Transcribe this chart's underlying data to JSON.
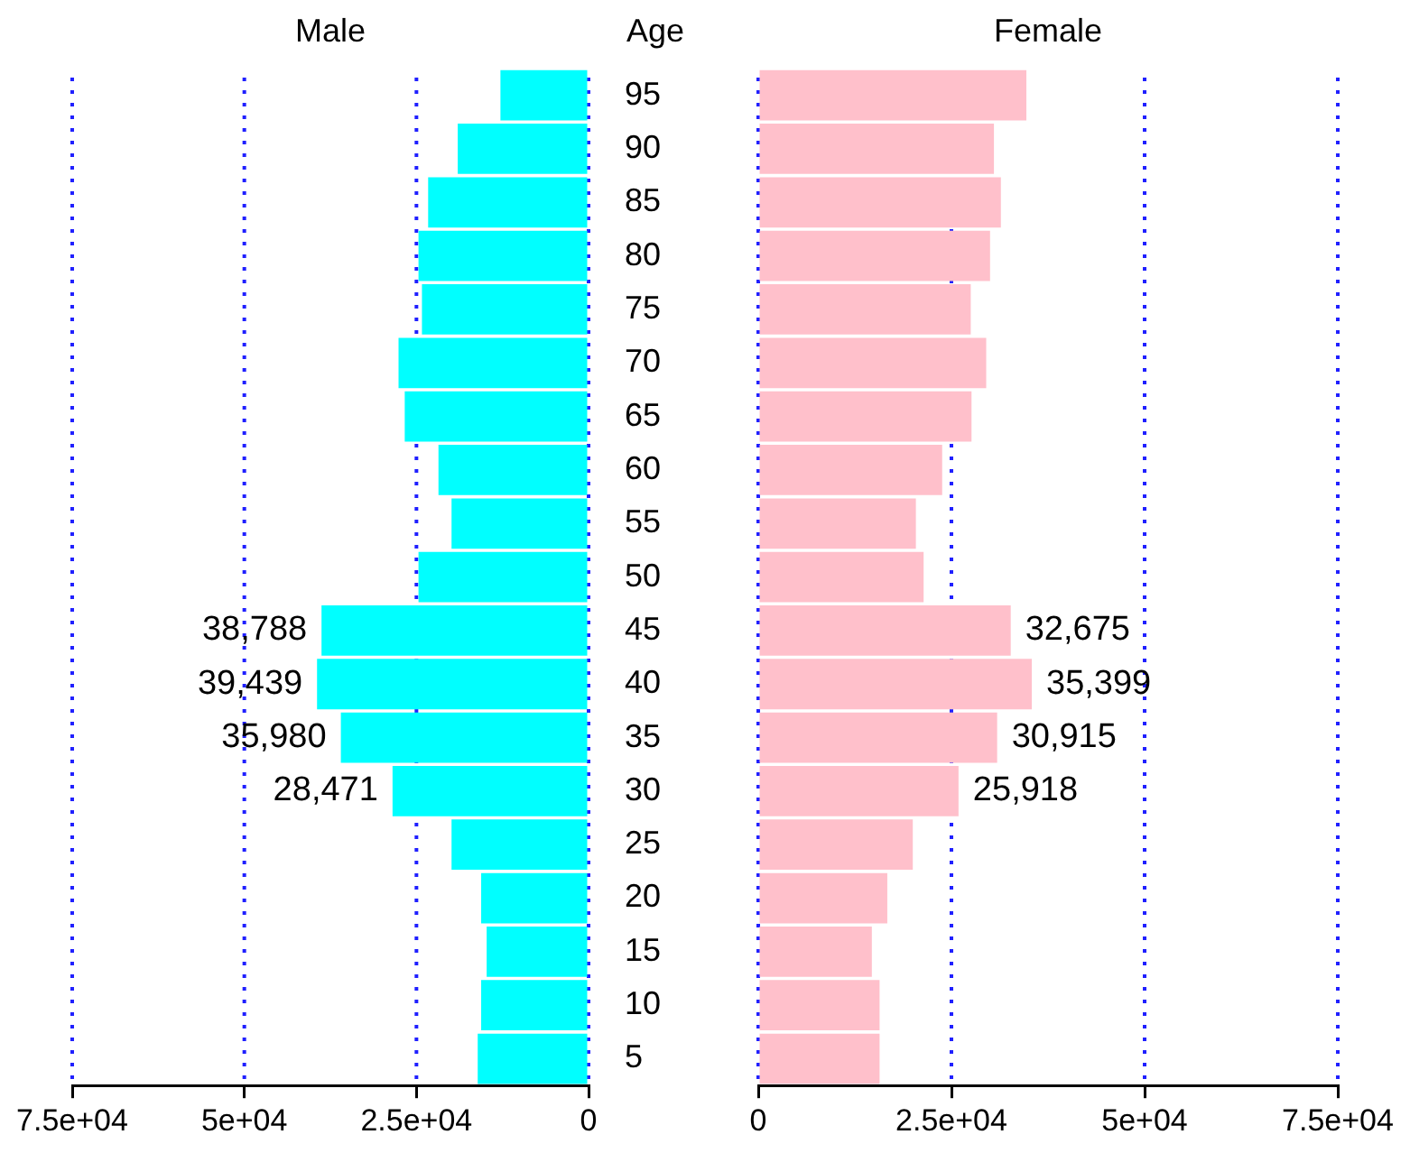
{
  "chart_data": [
    {
      "type": "bar",
      "orientation": "horizontal",
      "title": "Male",
      "ylabel": "Age",
      "categories": [
        "95",
        "90",
        "85",
        "80",
        "75",
        "70",
        "65",
        "60",
        "55",
        "50",
        "45",
        "40",
        "35",
        "30",
        "25",
        "20",
        "15",
        "10",
        "5"
      ],
      "values": [
        12800,
        19000,
        23300,
        24700,
        24200,
        27600,
        26700,
        21800,
        19900,
        24700,
        38788,
        39439,
        35980,
        28471,
        19900,
        15600,
        14800,
        15600,
        16100
      ],
      "value_labels": [
        null,
        null,
        null,
        null,
        null,
        null,
        null,
        null,
        null,
        null,
        "38,788",
        "39,439",
        "35,980",
        "28,471",
        null,
        null,
        null,
        null,
        null
      ],
      "color": "#00ffff",
      "xlim": [
        75000,
        0
      ],
      "xticks": [
        {
          "value": 75000,
          "label": "7.5e+04"
        },
        {
          "value": 50000,
          "label": "5e+04"
        },
        {
          "value": 25000,
          "label": "2.5e+04"
        },
        0
      ],
      "grid": "x"
    },
    {
      "type": "bar",
      "orientation": "horizontal",
      "title": "Female",
      "tick_labels": "x",
      "categories": [
        "95",
        "90",
        "85",
        "80",
        "75",
        "70",
        "65",
        "60",
        "55",
        "50",
        "45",
        "40",
        "35",
        "30",
        "25",
        "20",
        "15",
        "10",
        "5"
      ],
      "values": [
        34700,
        30500,
        31400,
        30000,
        27500,
        29500,
        27600,
        23800,
        20400,
        21400,
        32675,
        35399,
        30915,
        25918,
        20000,
        16700,
        14700,
        15700,
        15700
      ],
      "value_labels": [
        null,
        null,
        null,
        null,
        null,
        null,
        null,
        null,
        null,
        null,
        "32,675",
        "35,399",
        "30,915",
        "25,918",
        null,
        null,
        null,
        null,
        null
      ],
      "color": "#ffc0cb",
      "xlim": [
        0,
        75000
      ],
      "xticks": [
        0,
        {
          "value": 25000,
          "label": "2.5e+04"
        },
        {
          "value": 50000,
          "label": "5e+04"
        },
        {
          "value": 75000,
          "label": "7.5e+04"
        }
      ],
      "grid": "x"
    }
  ]
}
